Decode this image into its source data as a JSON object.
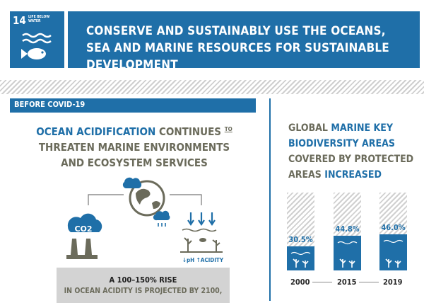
{
  "header": {
    "goal_number": "14",
    "goal_name": "LIFE BELOW WATER",
    "title": "CONSERVE AND SUSTAINABLY USE THE OCEANS, SEA AND MARINE RESOURCES FOR SUSTAINABLE DEVELOPMENT"
  },
  "section_tag": "BEFORE COVID-19",
  "left": {
    "headline_part1": "OCEAN ACIDIFICATION",
    "headline_part2": " CONTINUES ",
    "headline_to": "TO",
    "headline_part3": "THREATEN MARINE ENVIRONMENTS AND ECOSYSTEM SERVICES",
    "co2_label": "CO2",
    "ph_label": "↓pH ↑ACIDITY",
    "rise_line1": "A 100–150% RISE",
    "rise_line2": "IN OCEAN ACIDITY IS PROJECTED BY 2100,"
  },
  "right": {
    "head_part1": "GLOBAL ",
    "head_part2": "MARINE KEY BIODIVERSITY AREAS",
    "head_part3": " COVERED BY PROTECTED AREAS ",
    "head_part4": "INCREASED"
  },
  "chart_data": {
    "type": "bar",
    "categories": [
      "2000",
      "2015",
      "2019"
    ],
    "values": [
      30.5,
      44.8,
      46.0
    ],
    "labels": [
      "30.5%",
      "44.8%",
      "46.0%"
    ],
    "ylim": [
      0,
      100
    ],
    "title": "",
    "xlabel": "",
    "ylabel": ""
  },
  "colors": {
    "accent": "#1f6fa8",
    "secondary_text": "#6b6b5b",
    "panel": "#d3d3d3"
  }
}
